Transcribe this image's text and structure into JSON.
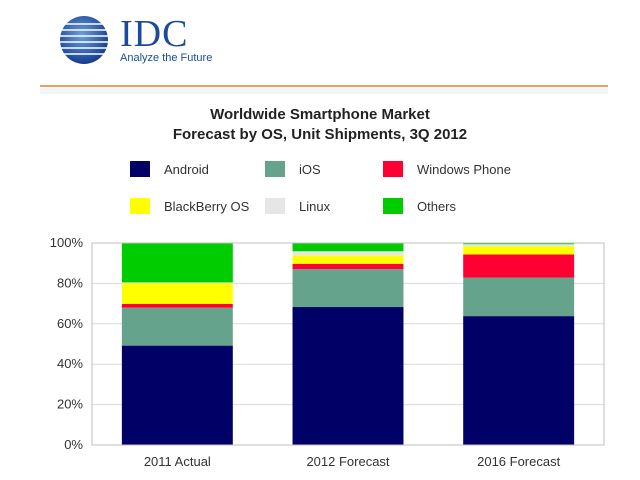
{
  "brand": {
    "name": "IDC",
    "tagline": "Analyze the Future",
    "color": "#1c4b9c"
  },
  "chart_data": {
    "type": "bar",
    "stacked": true,
    "title_lines": [
      "Worldwide Smartphone Market",
      "Forecast by OS, Unit Shipments, 3Q 2012"
    ],
    "categories": [
      "2011 Actual",
      "2012 Forecast",
      "2016 Forecast"
    ],
    "ylim": [
      0,
      100
    ],
    "yticks": [
      "0%",
      "20%",
      "40%",
      "60%",
      "80%",
      "100%"
    ],
    "grid": true,
    "legend_position": "top",
    "series": [
      {
        "name": "Android",
        "color": "#000066",
        "values": [
          49.2,
          68.3,
          63.8
        ]
      },
      {
        "name": "iOS",
        "color": "#66a38c",
        "values": [
          18.8,
          18.8,
          19.1
        ]
      },
      {
        "name": "Windows Phone",
        "color": "#ff0033",
        "values": [
          1.8,
          2.6,
          11.4
        ]
      },
      {
        "name": "BlackBerry OS",
        "color": "#ffff00",
        "values": [
          10.3,
          4.2,
          4.1
        ]
      },
      {
        "name": "Linux",
        "color": "#e6e6e6",
        "values": [
          0.4,
          2.0,
          1.0
        ]
      },
      {
        "name": "Others",
        "color": "#00cc00",
        "values": [
          19.5,
          4.1,
          0.6
        ]
      }
    ]
  }
}
